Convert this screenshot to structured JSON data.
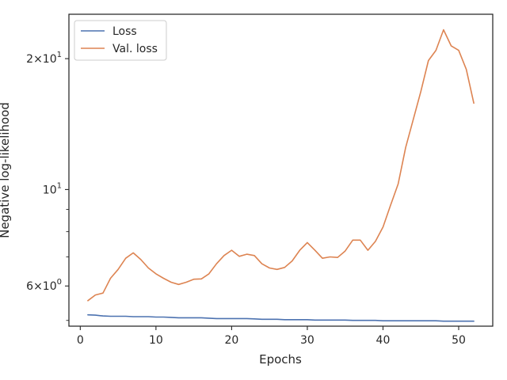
{
  "chart_data": {
    "type": "line",
    "xlabel": "Epochs",
    "ylabel": "Negative log-likelihood",
    "xlim": [
      -1.5,
      54.5
    ],
    "ylim": [
      4.85,
      25.3
    ],
    "yscale": "log",
    "grid": false,
    "legend_position": "top-left",
    "x_ticks": [
      0,
      10,
      20,
      30,
      40,
      50
    ],
    "x_tick_labels": [
      "0",
      "10",
      "20",
      "30",
      "40",
      "50"
    ],
    "y_ticks": [
      {
        "value": 6,
        "mantissa": "6",
        "exponent": "0"
      },
      {
        "value": 10,
        "mantissa": "",
        "exponent": "1"
      },
      {
        "value": 20,
        "mantissa": "2",
        "exponent": "1"
      }
    ],
    "y_tick_base": "10",
    "y_minor_ticks": [
      5,
      7,
      8,
      9
    ],
    "series": [
      {
        "name": "Loss",
        "color": "#4c72b0",
        "x": [
          1,
          2,
          3,
          4,
          5,
          6,
          7,
          8,
          9,
          10,
          11,
          12,
          13,
          14,
          15,
          16,
          17,
          18,
          19,
          20,
          21,
          22,
          23,
          24,
          25,
          26,
          27,
          28,
          29,
          30,
          31,
          32,
          33,
          34,
          35,
          36,
          37,
          38,
          39,
          40,
          41,
          42,
          43,
          44,
          45,
          46,
          47,
          48,
          49,
          50,
          51,
          52
        ],
        "values": [
          5.15,
          5.14,
          5.12,
          5.11,
          5.11,
          5.11,
          5.1,
          5.1,
          5.1,
          5.09,
          5.09,
          5.08,
          5.07,
          5.07,
          5.07,
          5.07,
          5.06,
          5.05,
          5.05,
          5.05,
          5.05,
          5.05,
          5.04,
          5.03,
          5.03,
          5.03,
          5.02,
          5.02,
          5.02,
          5.02,
          5.01,
          5.01,
          5.01,
          5.01,
          5.01,
          5.0,
          5.0,
          5.0,
          5.0,
          4.99,
          4.99,
          4.99,
          4.99,
          4.99,
          4.99,
          4.99,
          4.99,
          4.98,
          4.98,
          4.98,
          4.98,
          4.98
        ]
      },
      {
        "name": "Val. loss",
        "color": "#dd8452",
        "x": [
          1,
          2,
          3,
          4,
          5,
          6,
          7,
          8,
          9,
          10,
          11,
          12,
          13,
          14,
          15,
          16,
          17,
          18,
          19,
          20,
          21,
          22,
          23,
          24,
          25,
          26,
          27,
          28,
          29,
          30,
          31,
          32,
          33,
          34,
          35,
          36,
          37,
          38,
          39,
          40,
          41,
          42,
          43,
          44,
          45,
          46,
          47,
          48,
          49,
          50,
          51,
          52
        ],
        "values": [
          5.55,
          5.72,
          5.78,
          6.25,
          6.55,
          6.95,
          7.15,
          6.9,
          6.6,
          6.4,
          6.25,
          6.12,
          6.05,
          6.12,
          6.22,
          6.23,
          6.4,
          6.75,
          7.05,
          7.25,
          7.02,
          7.1,
          7.05,
          6.75,
          6.6,
          6.55,
          6.62,
          6.85,
          7.25,
          7.55,
          7.25,
          6.95,
          7.0,
          6.98,
          7.22,
          7.65,
          7.65,
          7.25,
          7.6,
          8.2,
          9.2,
          10.3,
          12.5,
          14.5,
          16.8,
          19.8,
          20.9,
          23.3,
          21.4,
          20.9,
          18.9,
          15.8
        ]
      }
    ]
  }
}
